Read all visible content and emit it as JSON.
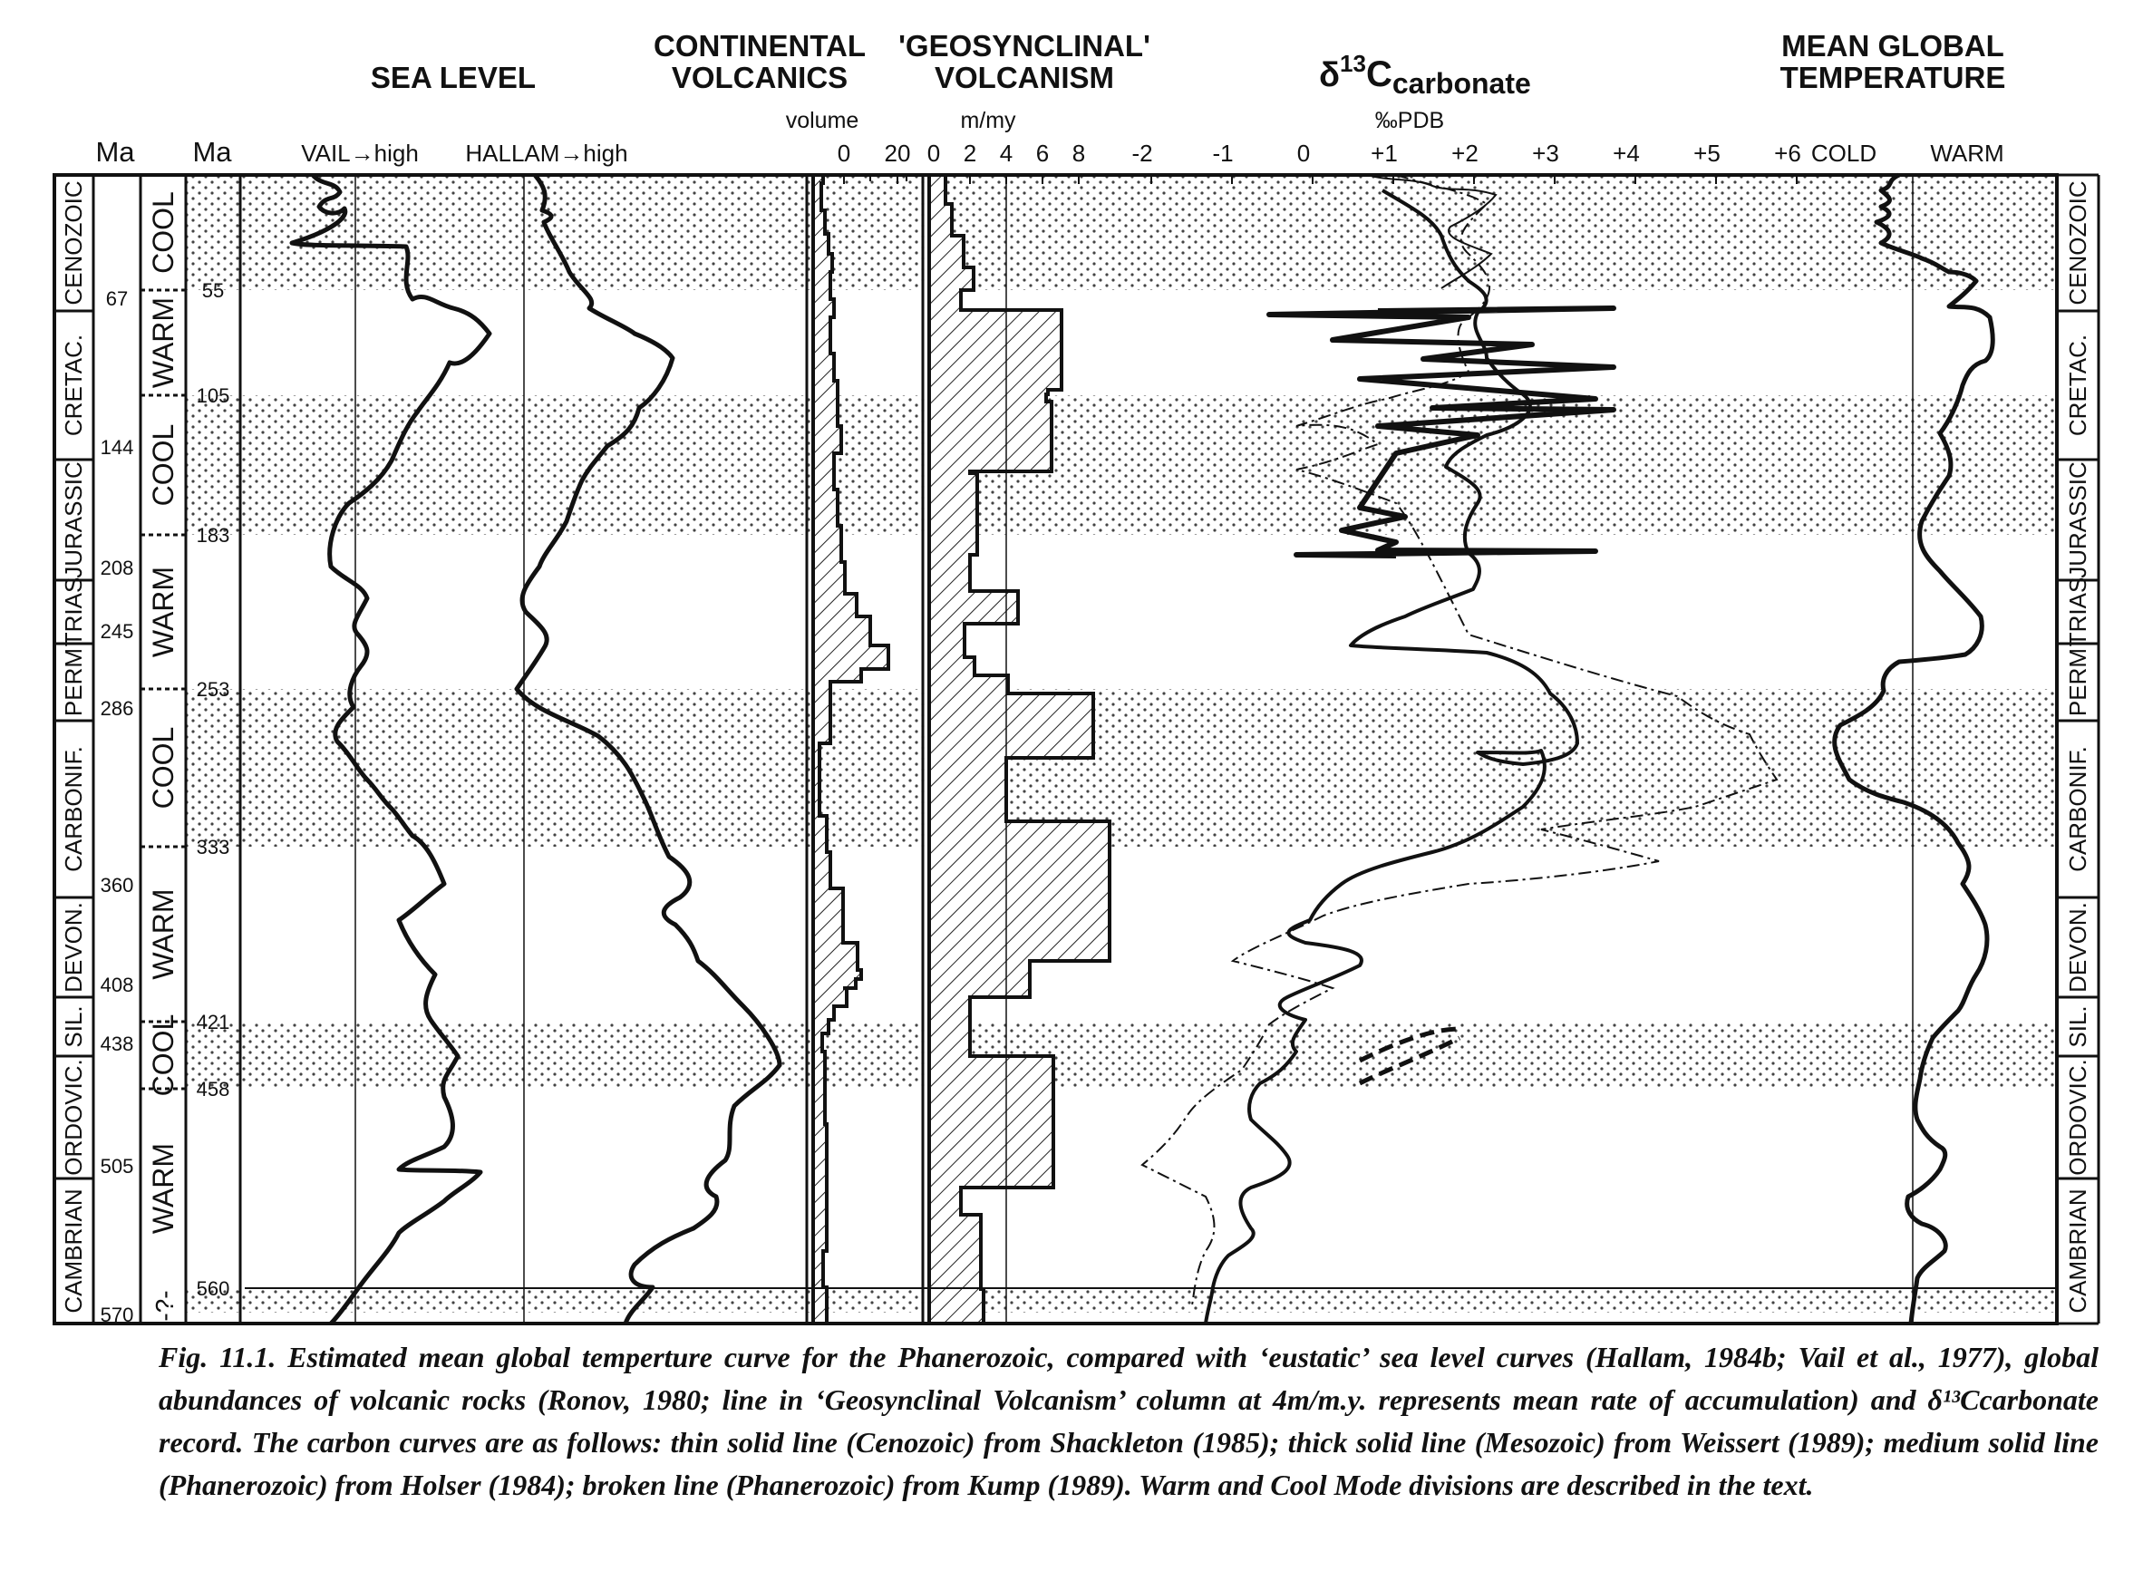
{
  "column_titles": {
    "sea_level": "SEA LEVEL",
    "continental_1": "CONTINENTAL",
    "continental_2": "VOLCANICS",
    "geosynclinal_1": "'GEOSYNCLINAL'",
    "geosynclinal_2": "VOLCANISM",
    "carbon_delta": "δ",
    "carbon_sup": "13",
    "carbon_main": "C",
    "carbon_sub": "carbonate",
    "temp_1": "MEAN GLOBAL",
    "temp_2": "TEMPERATURE"
  },
  "units": {
    "volume": "volume",
    "mmy": "m/my",
    "pdb": "‰PDB"
  },
  "headers": {
    "ma_left": "Ma",
    "ma_right": "Ma",
    "vail": "VAIL→high",
    "hallam": "HALLAM→high",
    "cold": "COLD",
    "warm": "WARM"
  },
  "volume_ticks": [
    "0",
    "20"
  ],
  "mmy_ticks": [
    "0",
    "2",
    "4",
    "6",
    "8"
  ],
  "carbon_ticks": [
    "-2",
    "-1",
    "0",
    "+1",
    "+2",
    "+3",
    "+4",
    "+5",
    "+6"
  ],
  "periods": [
    "CENOZOIC",
    "CRETAC.",
    "JURASSIC",
    "TRIAS",
    "PERM",
    "CARBONIF.",
    "DEVON.",
    "SIL.",
    "ORDOVIC.",
    "CAMBRIAN"
  ],
  "period_boundaries": [
    "67",
    "144",
    "208",
    "245",
    "286",
    "360",
    "408",
    "438",
    "505",
    "570"
  ],
  "modes": [
    "COOL",
    "WARM",
    "COOL",
    "WARM",
    "COOL",
    "WARM",
    "COOL",
    "WARM"
  ],
  "mode_boundaries": [
    "55",
    "105",
    "183",
    "253",
    "333",
    "421",
    "458",
    "560"
  ],
  "uncertain_mark": "-?-",
  "caption": "Fig. 11.1. Estimated mean global temperture curve for the Phanerozoic, compared with ‘eustatic’ sea level curves (Hallam, 1984b; Vail et al., 1977), global abundances of volcanic rocks (Ronov, 1980; line in ‘Geosynclinal Volcanism’ column at 4m/m.y. represents mean rate of accumulation) and δ¹³Ccarbonate record. The carbon curves are as follows: thin solid line (Cenozoic) from Shackleton (1985); thick solid line (Mesozoic) from Weissert (1989); medium solid line (Phanerozoic) from Holser (1984); broken line (Phanerozoic) from Kump (1989). Warm and Cool Mode divisions are described in the text."
}
